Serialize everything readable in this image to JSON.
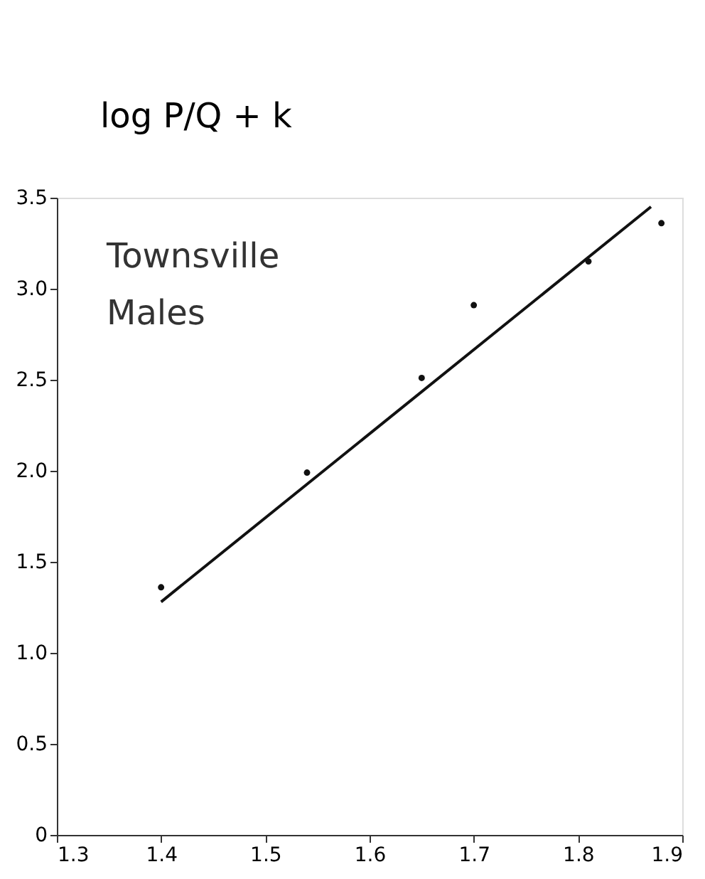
{
  "chart_data": {
    "type": "scatter",
    "ylabel": "log P/Q + k",
    "annotations": [
      "Townsville",
      "Males"
    ],
    "series": [
      {
        "color": "#111111",
        "x": [
          1.4,
          1.54,
          1.65,
          1.7,
          1.81,
          1.88
        ],
        "values": [
          1.36,
          1.99,
          2.51,
          2.91,
          3.15,
          3.36
        ]
      },
      {
        "type": "line",
        "marker": "none",
        "color": "#111111",
        "x": [
          1.4,
          1.87
        ],
        "values": [
          1.28,
          3.45
        ]
      }
    ],
    "xlim": [
      1.3,
      1.9
    ],
    "xticks": [
      1.3,
      1.4,
      1.5,
      1.6,
      1.7,
      1.8,
      1.9
    ],
    "ylim": [
      0,
      3.5
    ],
    "yticks": [
      0,
      0.5,
      {
        "value": 1,
        "label": "1.0"
      },
      1.5,
      {
        "value": 2,
        "label": "2.0"
      },
      2.5,
      {
        "value": 3,
        "label": "3.0"
      },
      3.5
    ],
    "grid": false,
    "marker": "circle",
    "line_style": "solid"
  }
}
